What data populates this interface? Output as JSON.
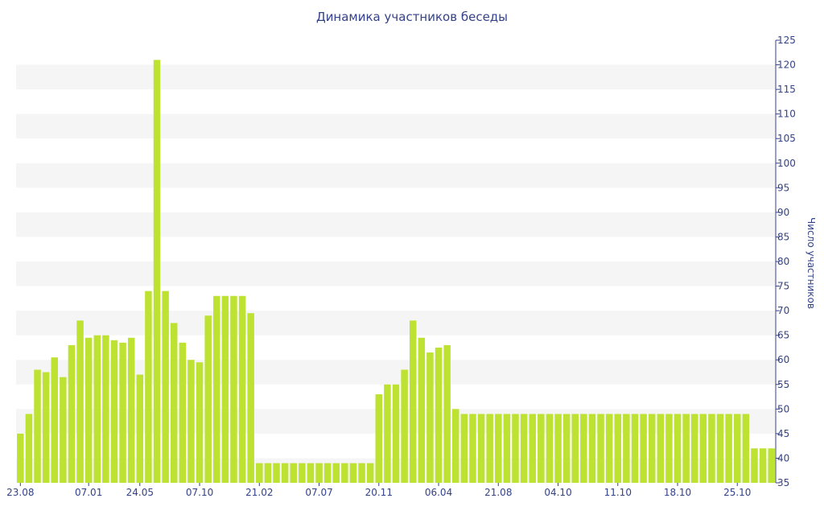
{
  "chart_data": {
    "type": "bar",
    "title": "Динамика участников беседы",
    "ylabel": "Число участников",
    "xlabel": "",
    "ylim": [
      35,
      125
    ],
    "yticks": [
      35,
      40,
      45,
      50,
      55,
      60,
      65,
      70,
      75,
      80,
      85,
      90,
      95,
      100,
      105,
      110,
      115,
      120,
      125
    ],
    "y_axis_side": "right",
    "grid": "horizontal alternating bands",
    "xtick_labels": [
      {
        "index": 0,
        "label": "23.08"
      },
      {
        "index": 8,
        "label": "07.01"
      },
      {
        "index": 14,
        "label": "24.05"
      },
      {
        "index": 21,
        "label": "07.10"
      },
      {
        "index": 28,
        "label": "21.02"
      },
      {
        "index": 35,
        "label": "07.07"
      },
      {
        "index": 42,
        "label": "20.11"
      },
      {
        "index": 49,
        "label": "06.04"
      },
      {
        "index": 56,
        "label": "21.08"
      },
      {
        "index": 63,
        "label": "04.10"
      },
      {
        "index": 70,
        "label": "11.10"
      },
      {
        "index": 77,
        "label": "18.10"
      },
      {
        "index": 84,
        "label": "25.10"
      }
    ],
    "bar_color": "#bde232",
    "values": [
      45,
      49,
      58,
      57.5,
      60.5,
      56.5,
      63,
      68,
      64.5,
      65,
      65,
      64,
      63.5,
      64.5,
      57,
      74,
      121,
      74,
      67.5,
      63.5,
      60,
      59.5,
      69,
      73,
      73,
      73,
      73,
      69.5,
      39,
      39,
      39,
      39,
      39,
      39,
      39,
      39,
      39,
      39,
      39,
      39,
      39,
      39,
      53,
      55,
      55,
      58,
      68,
      64.5,
      61.5,
      62.5,
      63,
      50,
      49,
      49,
      49,
      49,
      49,
      49,
      49,
      49,
      49,
      49,
      49,
      49,
      49,
      49,
      49,
      49,
      49,
      49,
      49,
      49,
      49,
      49,
      49,
      49,
      49,
      49,
      49,
      49,
      49,
      49,
      49,
      49,
      49,
      49,
      42,
      42,
      42
    ]
  },
  "colors": {
    "text": "#34428a",
    "band": "#f5f5f5",
    "bar": "#bde232"
  }
}
